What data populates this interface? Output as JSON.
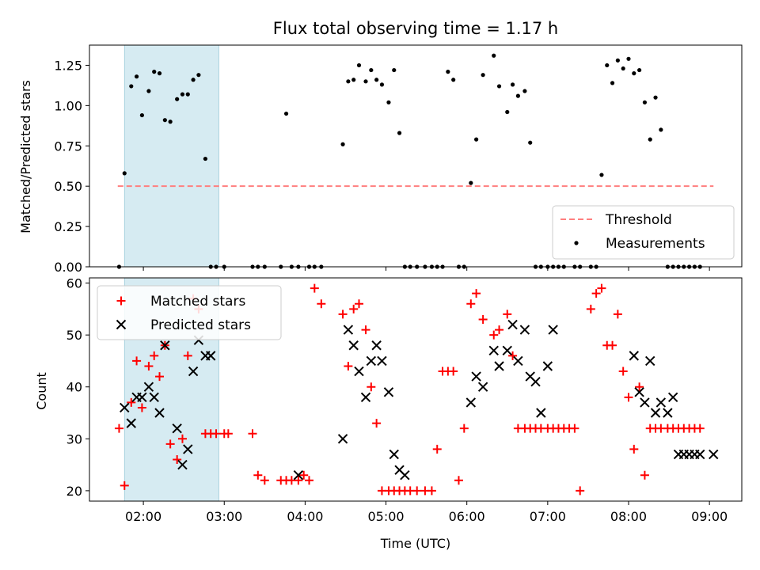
{
  "chart_data": [
    {
      "type": "scatter",
      "title": "Flux total observing time = 1.17 h",
      "xlabel": "",
      "ylabel": "Matched/Predicted stars",
      "ylim": [
        0,
        1.375
      ],
      "yticks": [
        "0.00",
        "0.25",
        "0.50",
        "0.75",
        "1.00",
        "1.25"
      ],
      "grid": false,
      "legend_placement": "bottom-right",
      "shaded_interval": [
        "01:46",
        "02:56"
      ],
      "threshold": {
        "name": "Threshold",
        "value": 0.5,
        "x_range": [
          "01:41",
          "09:03"
        ],
        "color": "#ff7f7f"
      },
      "series": [
        {
          "name": "Measurements",
          "color": "#000000",
          "x": [
            "01:42",
            "01:46",
            "01:51",
            "01:55",
            "01:59",
            "02:04",
            "02:08",
            "02:12",
            "02:16",
            "02:20",
            "02:25",
            "02:29",
            "02:33",
            "02:37",
            "02:41",
            "02:46",
            "02:50",
            "02:54",
            "03:00",
            "03:21",
            "03:25",
            "03:30",
            "03:42",
            "03:46",
            "03:50",
            "03:55",
            "04:03",
            "04:07",
            "04:12",
            "04:28",
            "04:32",
            "04:36",
            "04:40",
            "04:45",
            "04:49",
            "04:53",
            "04:57",
            "05:02",
            "05:06",
            "05:10",
            "05:14",
            "05:18",
            "05:23",
            "05:29",
            "05:34",
            "05:38",
            "05:42",
            "05:46",
            "05:50",
            "05:54",
            "05:58",
            "06:03",
            "06:07",
            "06:12",
            "06:20",
            "06:24",
            "06:30",
            "06:34",
            "06:38",
            "06:43",
            "06:47",
            "06:51",
            "06:55",
            "07:00",
            "07:04",
            "07:08",
            "07:12",
            "07:20",
            "07:24",
            "07:32",
            "07:36",
            "07:40",
            "07:44",
            "07:48",
            "07:52",
            "07:56",
            "08:00",
            "08:04",
            "08:08",
            "08:12",
            "08:16",
            "08:20",
            "08:24",
            "08:29",
            "08:33",
            "08:37",
            "08:41",
            "08:45",
            "08:49",
            "08:53"
          ],
          "y": [
            0.0,
            0.58,
            1.12,
            1.18,
            0.94,
            1.09,
            1.21,
            1.2,
            0.91,
            0.9,
            1.04,
            1.07,
            1.07,
            1.16,
            1.19,
            0.67,
            0.0,
            0.0,
            0.0,
            0.0,
            0.0,
            0.0,
            0.0,
            0.95,
            0.0,
            0.0,
            0.0,
            0.0,
            0.0,
            0.76,
            1.15,
            1.16,
            1.25,
            1.15,
            1.22,
            1.16,
            1.13,
            1.02,
            1.22,
            0.83,
            0.0,
            0.0,
            0.0,
            0.0,
            0.0,
            0.0,
            0.0,
            1.21,
            1.16,
            0.0,
            0.0,
            0.52,
            0.79,
            1.19,
            1.31,
            1.12,
            0.96,
            1.13,
            1.06,
            1.09,
            0.77,
            0.0,
            0.0,
            0.0,
            0.0,
            0.0,
            0.0,
            0.0,
            0.0,
            0.0,
            0.0,
            0.57,
            1.25,
            1.14,
            1.28,
            1.23,
            1.29,
            1.2,
            1.22,
            1.02,
            0.79,
            1.05,
            0.85,
            0.0,
            0.0,
            0.0,
            0.0,
            0.0,
            0.0,
            0.0
          ]
        }
      ]
    },
    {
      "type": "scatter",
      "title": "",
      "xlabel": "Time (UTC)",
      "ylabel": "Count",
      "ylim": [
        18,
        61
      ],
      "xlim": [
        "01:20",
        "09:24"
      ],
      "xticks": [
        "02:00",
        "03:00",
        "04:00",
        "05:00",
        "06:00",
        "07:00",
        "08:00",
        "09:00"
      ],
      "yticks": [
        "20",
        "30",
        "40",
        "50",
        "60"
      ],
      "grid": false,
      "legend_placement": "top-left",
      "shaded_interval": [
        "01:46",
        "02:56"
      ],
      "series": [
        {
          "name": "Matched stars",
          "marker": "+",
          "color": "#ff0000",
          "x": [
            "01:42",
            "01:46",
            "01:51",
            "01:55",
            "01:59",
            "02:04",
            "02:08",
            "02:12",
            "02:16",
            "02:20",
            "02:25",
            "02:29",
            "02:33",
            "02:37",
            "02:41",
            "02:46",
            "02:50",
            "02:54",
            "03:00",
            "03:03",
            "03:21",
            "03:25",
            "03:30",
            "03:42",
            "03:46",
            "03:50",
            "03:55",
            "03:59",
            "04:03",
            "04:07",
            "04:12",
            "04:28",
            "04:32",
            "04:36",
            "04:40",
            "04:45",
            "04:49",
            "04:53",
            "04:57",
            "05:02",
            "05:06",
            "05:10",
            "05:14",
            "05:18",
            "05:23",
            "05:29",
            "05:34",
            "05:38",
            "05:42",
            "05:46",
            "05:50",
            "05:54",
            "05:58",
            "06:03",
            "06:07",
            "06:12",
            "06:20",
            "06:24",
            "06:30",
            "06:34",
            "06:38",
            "06:43",
            "06:47",
            "06:51",
            "06:55",
            "07:00",
            "07:04",
            "07:08",
            "07:12",
            "07:16",
            "07:20",
            "07:24",
            "07:32",
            "07:36",
            "07:40",
            "07:44",
            "07:48",
            "07:52",
            "07:56",
            "08:00",
            "08:04",
            "08:08",
            "08:12",
            "08:16",
            "08:20",
            "08:24",
            "08:29",
            "08:33",
            "08:37",
            "08:41",
            "08:45",
            "08:49",
            "08:53"
          ],
          "y": [
            32,
            21,
            37,
            45,
            36,
            44,
            46,
            42,
            48,
            29,
            26,
            30,
            46,
            57,
            55,
            31,
            31,
            31,
            31,
            31,
            31,
            23,
            22,
            22,
            22,
            22,
            22,
            23,
            22,
            59,
            56,
            54,
            44,
            55,
            56,
            51,
            40,
            33,
            20,
            20,
            20,
            20,
            20,
            20,
            20,
            20,
            20,
            28,
            43,
            43,
            43,
            22,
            32,
            56,
            58,
            53,
            50,
            51,
            54,
            46,
            32,
            32,
            32,
            32,
            32,
            32,
            32,
            32,
            32,
            32,
            32,
            20,
            55,
            58,
            59,
            48,
            48,
            54,
            43,
            38,
            28,
            40,
            23,
            32,
            32,
            32,
            32,
            32,
            32,
            32,
            32,
            32,
            32
          ]
        },
        {
          "name": "Predicted stars",
          "marker": "x",
          "color": "#000000",
          "x": [
            "01:46",
            "01:51",
            "01:55",
            "01:59",
            "02:04",
            "02:08",
            "02:12",
            "02:16",
            "02:25",
            "02:29",
            "02:33",
            "02:37",
            "02:41",
            "02:46",
            "02:50",
            "03:55",
            "04:28",
            "04:32",
            "04:36",
            "04:40",
            "04:45",
            "04:49",
            "04:53",
            "04:57",
            "05:02",
            "05:06",
            "05:10",
            "05:14",
            "06:03",
            "06:07",
            "06:12",
            "06:20",
            "06:24",
            "06:30",
            "06:34",
            "06:38",
            "06:43",
            "06:47",
            "06:51",
            "06:55",
            "07:00",
            "07:04",
            "08:04",
            "08:08",
            "08:12",
            "08:16",
            "08:20",
            "08:24",
            "08:29",
            "08:33",
            "08:37",
            "08:41",
            "08:45",
            "08:49",
            "08:53",
            "09:03"
          ],
          "y": [
            36,
            33,
            38,
            38,
            40,
            38,
            35,
            48,
            32,
            25,
            28,
            43,
            49,
            46,
            46,
            23,
            30,
            51,
            48,
            43,
            38,
            45,
            48,
            45,
            39,
            27,
            24,
            23,
            37,
            42,
            40,
            47,
            44,
            47,
            52,
            45,
            51,
            42,
            41,
            35,
            44,
            51,
            46,
            39,
            37,
            45,
            35,
            37,
            35,
            38,
            27,
            27,
            27,
            27,
            27,
            27
          ]
        }
      ]
    }
  ]
}
